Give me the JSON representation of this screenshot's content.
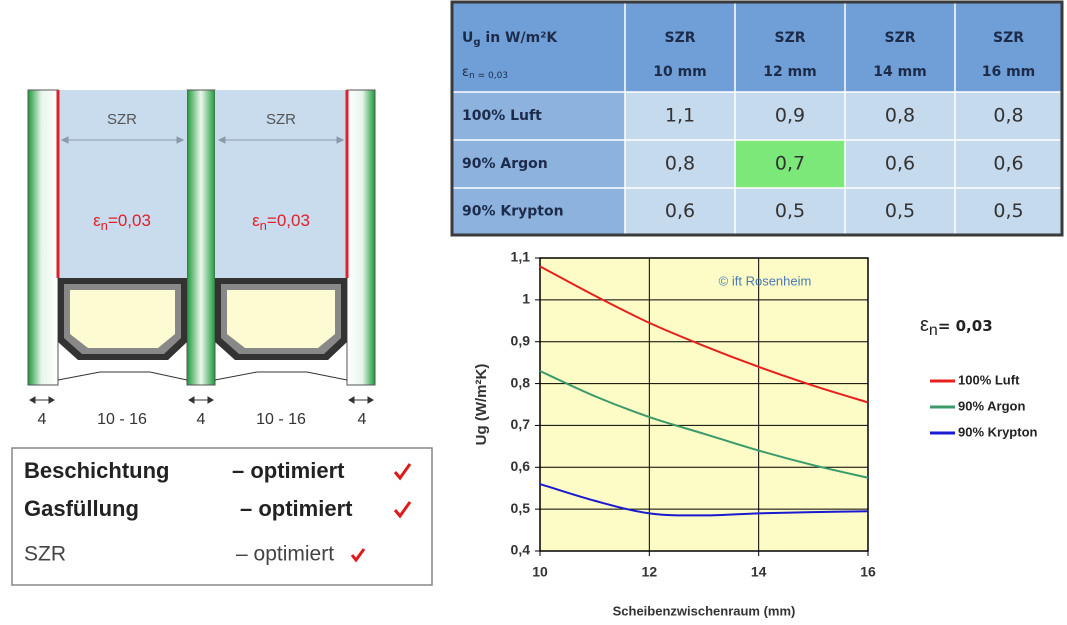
{
  "diagram": {
    "gap_labels": [
      "SZR",
      "SZR"
    ],
    "coating_labels": [
      {
        "symbol": "ε",
        "subscript": "n",
        "text": "=0,03"
      },
      {
        "symbol": "ε",
        "subscript": "n",
        "text": "=0,03"
      }
    ],
    "dimensions": [
      "4",
      "10 - 16",
      "4",
      "10 - 16",
      "4"
    ]
  },
  "summary": {
    "rows": [
      {
        "label": "Beschichtung",
        "status": "– optimiert"
      },
      {
        "label": "Gasfüllung",
        "status": "– optimiert"
      },
      {
        "label": "SZR",
        "status": "– optimiert"
      }
    ]
  },
  "table": {
    "header": {
      "base": "U",
      "subscript": "g",
      "text": " in W/m²K",
      "note_symbol": "ε",
      "note_subscript": "n = 0,03"
    },
    "columns": [
      [
        "SZR",
        "10 mm"
      ],
      [
        "SZR",
        "12 mm"
      ],
      [
        "SZR",
        "14 mm"
      ],
      [
        "SZR",
        "16 mm"
      ]
    ],
    "rows": [
      [
        "100% Luft",
        "1,1",
        "0,9",
        "0,8",
        "0,8"
      ],
      [
        "90% Argon",
        "0,8",
        "0,7",
        "0,6",
        "0,6"
      ],
      [
        "90% Krypton",
        "0,6",
        "0,5",
        "0,5",
        "0,5"
      ]
    ],
    "highlight": {
      "row": 1,
      "col": 2,
      "color": "#7de87a"
    }
  },
  "chart_data": {
    "type": "line",
    "annotation": "© ift Rosenheim",
    "x_label": "Scheibenzwischenraum (mm)",
    "y_label": "Ug (W/m²K)",
    "side_label": {
      "symbol": "ε",
      "subscript": "n",
      "text": "= 0,03"
    },
    "x": [
      10,
      11,
      12,
      13,
      14,
      15,
      16
    ],
    "series": [
      {
        "name": "100% Luft",
        "color": "#e8201c",
        "values": [
          1.08,
          1.01,
          0.945,
          0.89,
          0.84,
          0.795,
          0.755
        ]
      },
      {
        "name": "90% Argon",
        "color": "#3a9a6a",
        "values": [
          0.83,
          0.77,
          0.72,
          0.68,
          0.64,
          0.605,
          0.575
        ]
      },
      {
        "name": "90% Krypton",
        "color": "#1a1ad0",
        "values": [
          0.56,
          0.52,
          0.49,
          0.485,
          0.49,
          0.493,
          0.495
        ]
      }
    ],
    "xlim": [
      10,
      16
    ],
    "ylim": [
      0.4,
      1.1
    ],
    "xticks": [
      10,
      12,
      14,
      16
    ],
    "yticks": [
      {
        "value": 0.4,
        "label": "0,4"
      },
      {
        "value": 0.5,
        "label": "0,5"
      },
      {
        "value": 0.6,
        "label": "0,6"
      },
      {
        "value": 0.7,
        "label": "0,7"
      },
      {
        "value": 0.8,
        "label": "0,8"
      },
      {
        "value": 0.9,
        "label": "0,9"
      },
      1,
      {
        "value": 1.1,
        "label": "1,1"
      }
    ],
    "grid": true,
    "background": "#fdfbc6",
    "legend": "right"
  }
}
